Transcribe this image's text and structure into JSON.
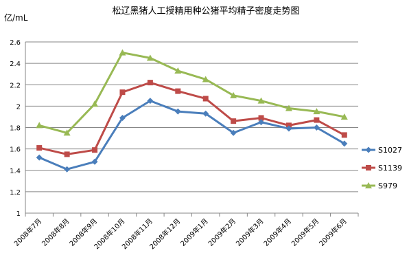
{
  "chart_data": {
    "type": "line",
    "title": "松辽黑猪人工授精用种公猪平均精子密度走势图",
    "ylabel": "亿/mL",
    "xlabel": "",
    "categories": [
      "2008年7月",
      "2008年8月",
      "2008年9月",
      "2008年10月",
      "2008年11月",
      "2008年12月",
      "2009年1月",
      "2009年2月",
      "2009年3月",
      "2009年4月",
      "2009年5月",
      "2009年6月"
    ],
    "ylim": [
      1,
      2.6
    ],
    "yticks": [
      "1",
      "1.2",
      "1.4",
      "1.6",
      "1.8",
      "2",
      "2.2",
      "2.4",
      "2.6"
    ],
    "grid": true,
    "legend_position": "right",
    "series": [
      {
        "name": "S1027",
        "color": "#4a7ebb",
        "marker": "diamond",
        "values": [
          1.52,
          1.41,
          1.48,
          1.89,
          2.05,
          1.95,
          1.93,
          1.75,
          1.85,
          1.79,
          1.8,
          1.65
        ]
      },
      {
        "name": "S1139",
        "color": "#be4b48",
        "marker": "square",
        "values": [
          1.61,
          1.55,
          1.59,
          2.13,
          2.22,
          2.14,
          2.07,
          1.86,
          1.89,
          1.82,
          1.87,
          1.73
        ]
      },
      {
        "name": "S979",
        "color": "#98b954",
        "marker": "triangle",
        "values": [
          1.82,
          1.75,
          2.02,
          2.5,
          2.45,
          2.33,
          2.25,
          2.1,
          2.05,
          1.98,
          1.95,
          1.9
        ]
      }
    ]
  }
}
